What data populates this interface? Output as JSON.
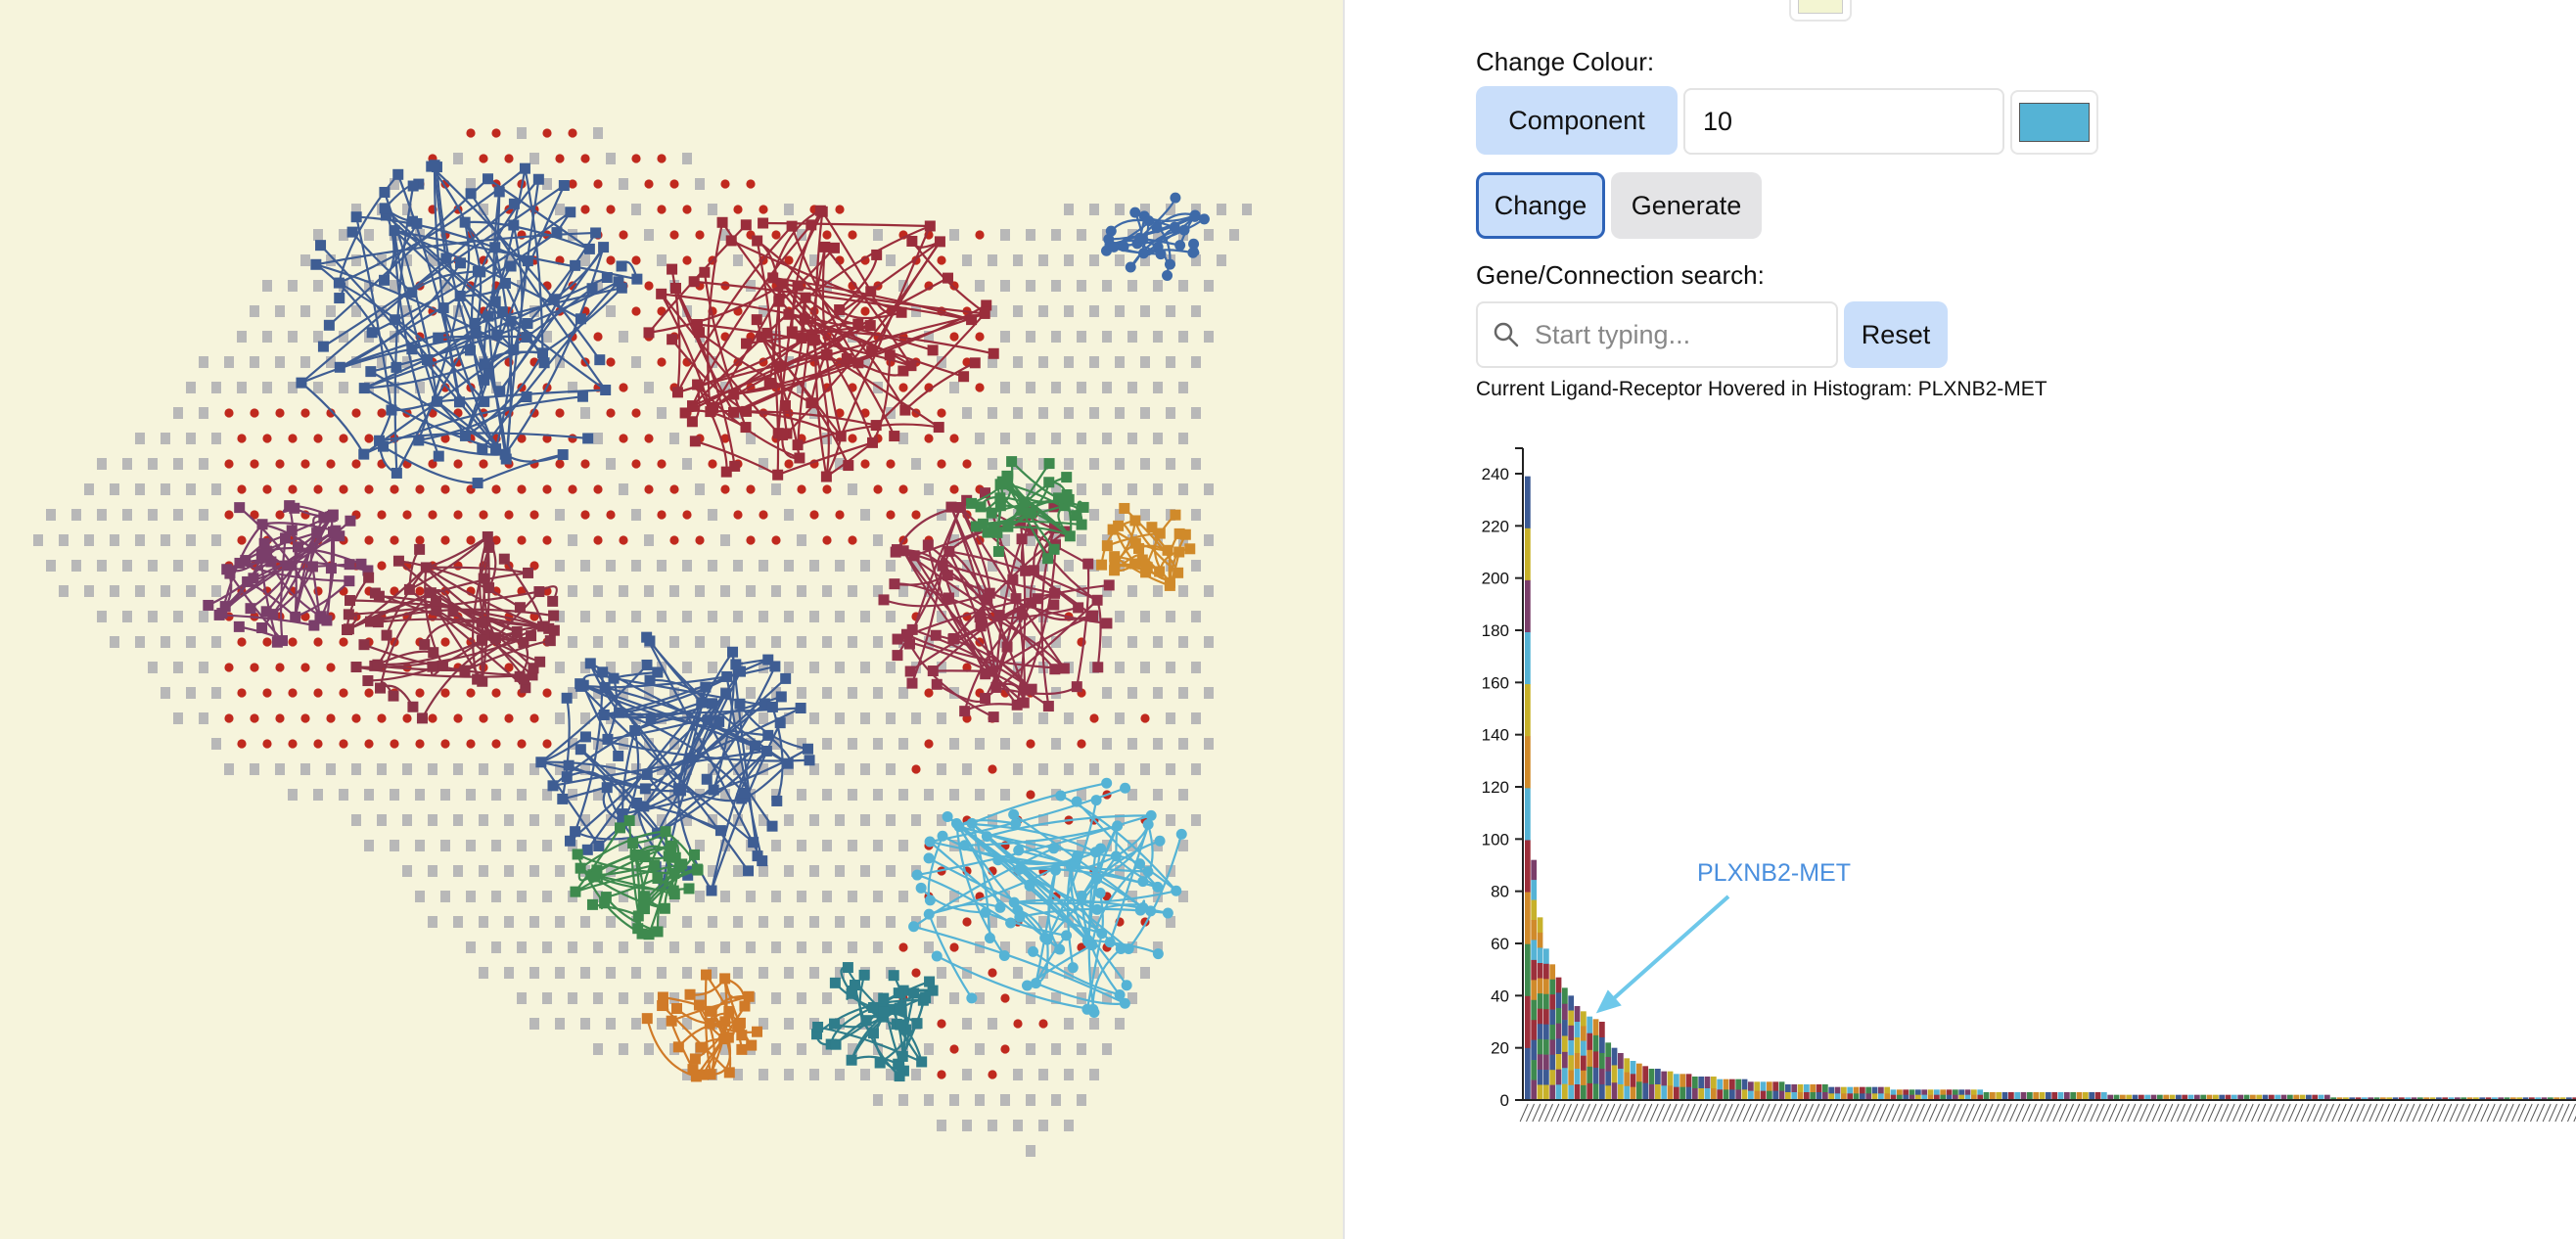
{
  "colors": {
    "background_left": "#f6f4dc",
    "top_swatch": "#f3f5d2",
    "component_swatch": "#55b3d5",
    "arrow": "#6ec8ea",
    "annotation": "#4a8fde"
  },
  "controls": {
    "change_colour_label": "Change Colour:",
    "component_button": "Component",
    "component_value": "10",
    "change_button": "Change",
    "generate_button": "Generate",
    "search_label": "Gene/Connection search:",
    "search_placeholder": "Start typing...",
    "reset_button": "Reset",
    "hover_status": "Current Ligand-Receptor Hovered in Histogram: PLXNB2-MET"
  },
  "chart_data": {
    "type": "bar",
    "title": "",
    "xlabel": "",
    "ylabel": "",
    "ylim": [
      0,
      240
    ],
    "yticks": [
      0,
      20,
      40,
      60,
      80,
      100,
      120,
      140,
      160,
      180,
      200,
      220,
      240
    ],
    "annotation": "PLXNB2-MET",
    "annotation_index": 11,
    "values": [
      239,
      92,
      70,
      58,
      52,
      47,
      43,
      40,
      36,
      34,
      32,
      31,
      30,
      22,
      20,
      18,
      16,
      15,
      14,
      13,
      12,
      12,
      11,
      11,
      10,
      10,
      10,
      9,
      9,
      9,
      9,
      8,
      8,
      8,
      8,
      8,
      7,
      7,
      7,
      7,
      7,
      7,
      6,
      6,
      6,
      6,
      6,
      6,
      6,
      5,
      5,
      5,
      5,
      5,
      5,
      5,
      5,
      5,
      5,
      4,
      4,
      4,
      4,
      4,
      4,
      4,
      4,
      4,
      4,
      4,
      4,
      4,
      4,
      4,
      3,
      3,
      3,
      3,
      3,
      3,
      3,
      3,
      3,
      3,
      3,
      3,
      3,
      3,
      3,
      3,
      3,
      3,
      3,
      3,
      2,
      2,
      2,
      2,
      2,
      2,
      2,
      2,
      2,
      2,
      2,
      2,
      2,
      2,
      2,
      2,
      2,
      2,
      2,
      2,
      2,
      2,
      2,
      2,
      2,
      2,
      2,
      2,
      2,
      2,
      2,
      2,
      2,
      2,
      2,
      2,
      1,
      1,
      1,
      1,
      1,
      1,
      1,
      1,
      1,
      1,
      1,
      1,
      1,
      1,
      1,
      1,
      1,
      1,
      1,
      1,
      1,
      1,
      1,
      1,
      1,
      1,
      1,
      1,
      1,
      1,
      1,
      1,
      1,
      1,
      1,
      1,
      1,
      1,
      1,
      1,
      1,
      1,
      1,
      1,
      1,
      1,
      1,
      1,
      1,
      1
    ],
    "segment_colors": [
      "#3c5a94",
      "#9c2f3b",
      "#55b3d5",
      "#7a3e6a",
      "#3e8a4e",
      "#d08a2a",
      "#c7b12a"
    ]
  }
}
